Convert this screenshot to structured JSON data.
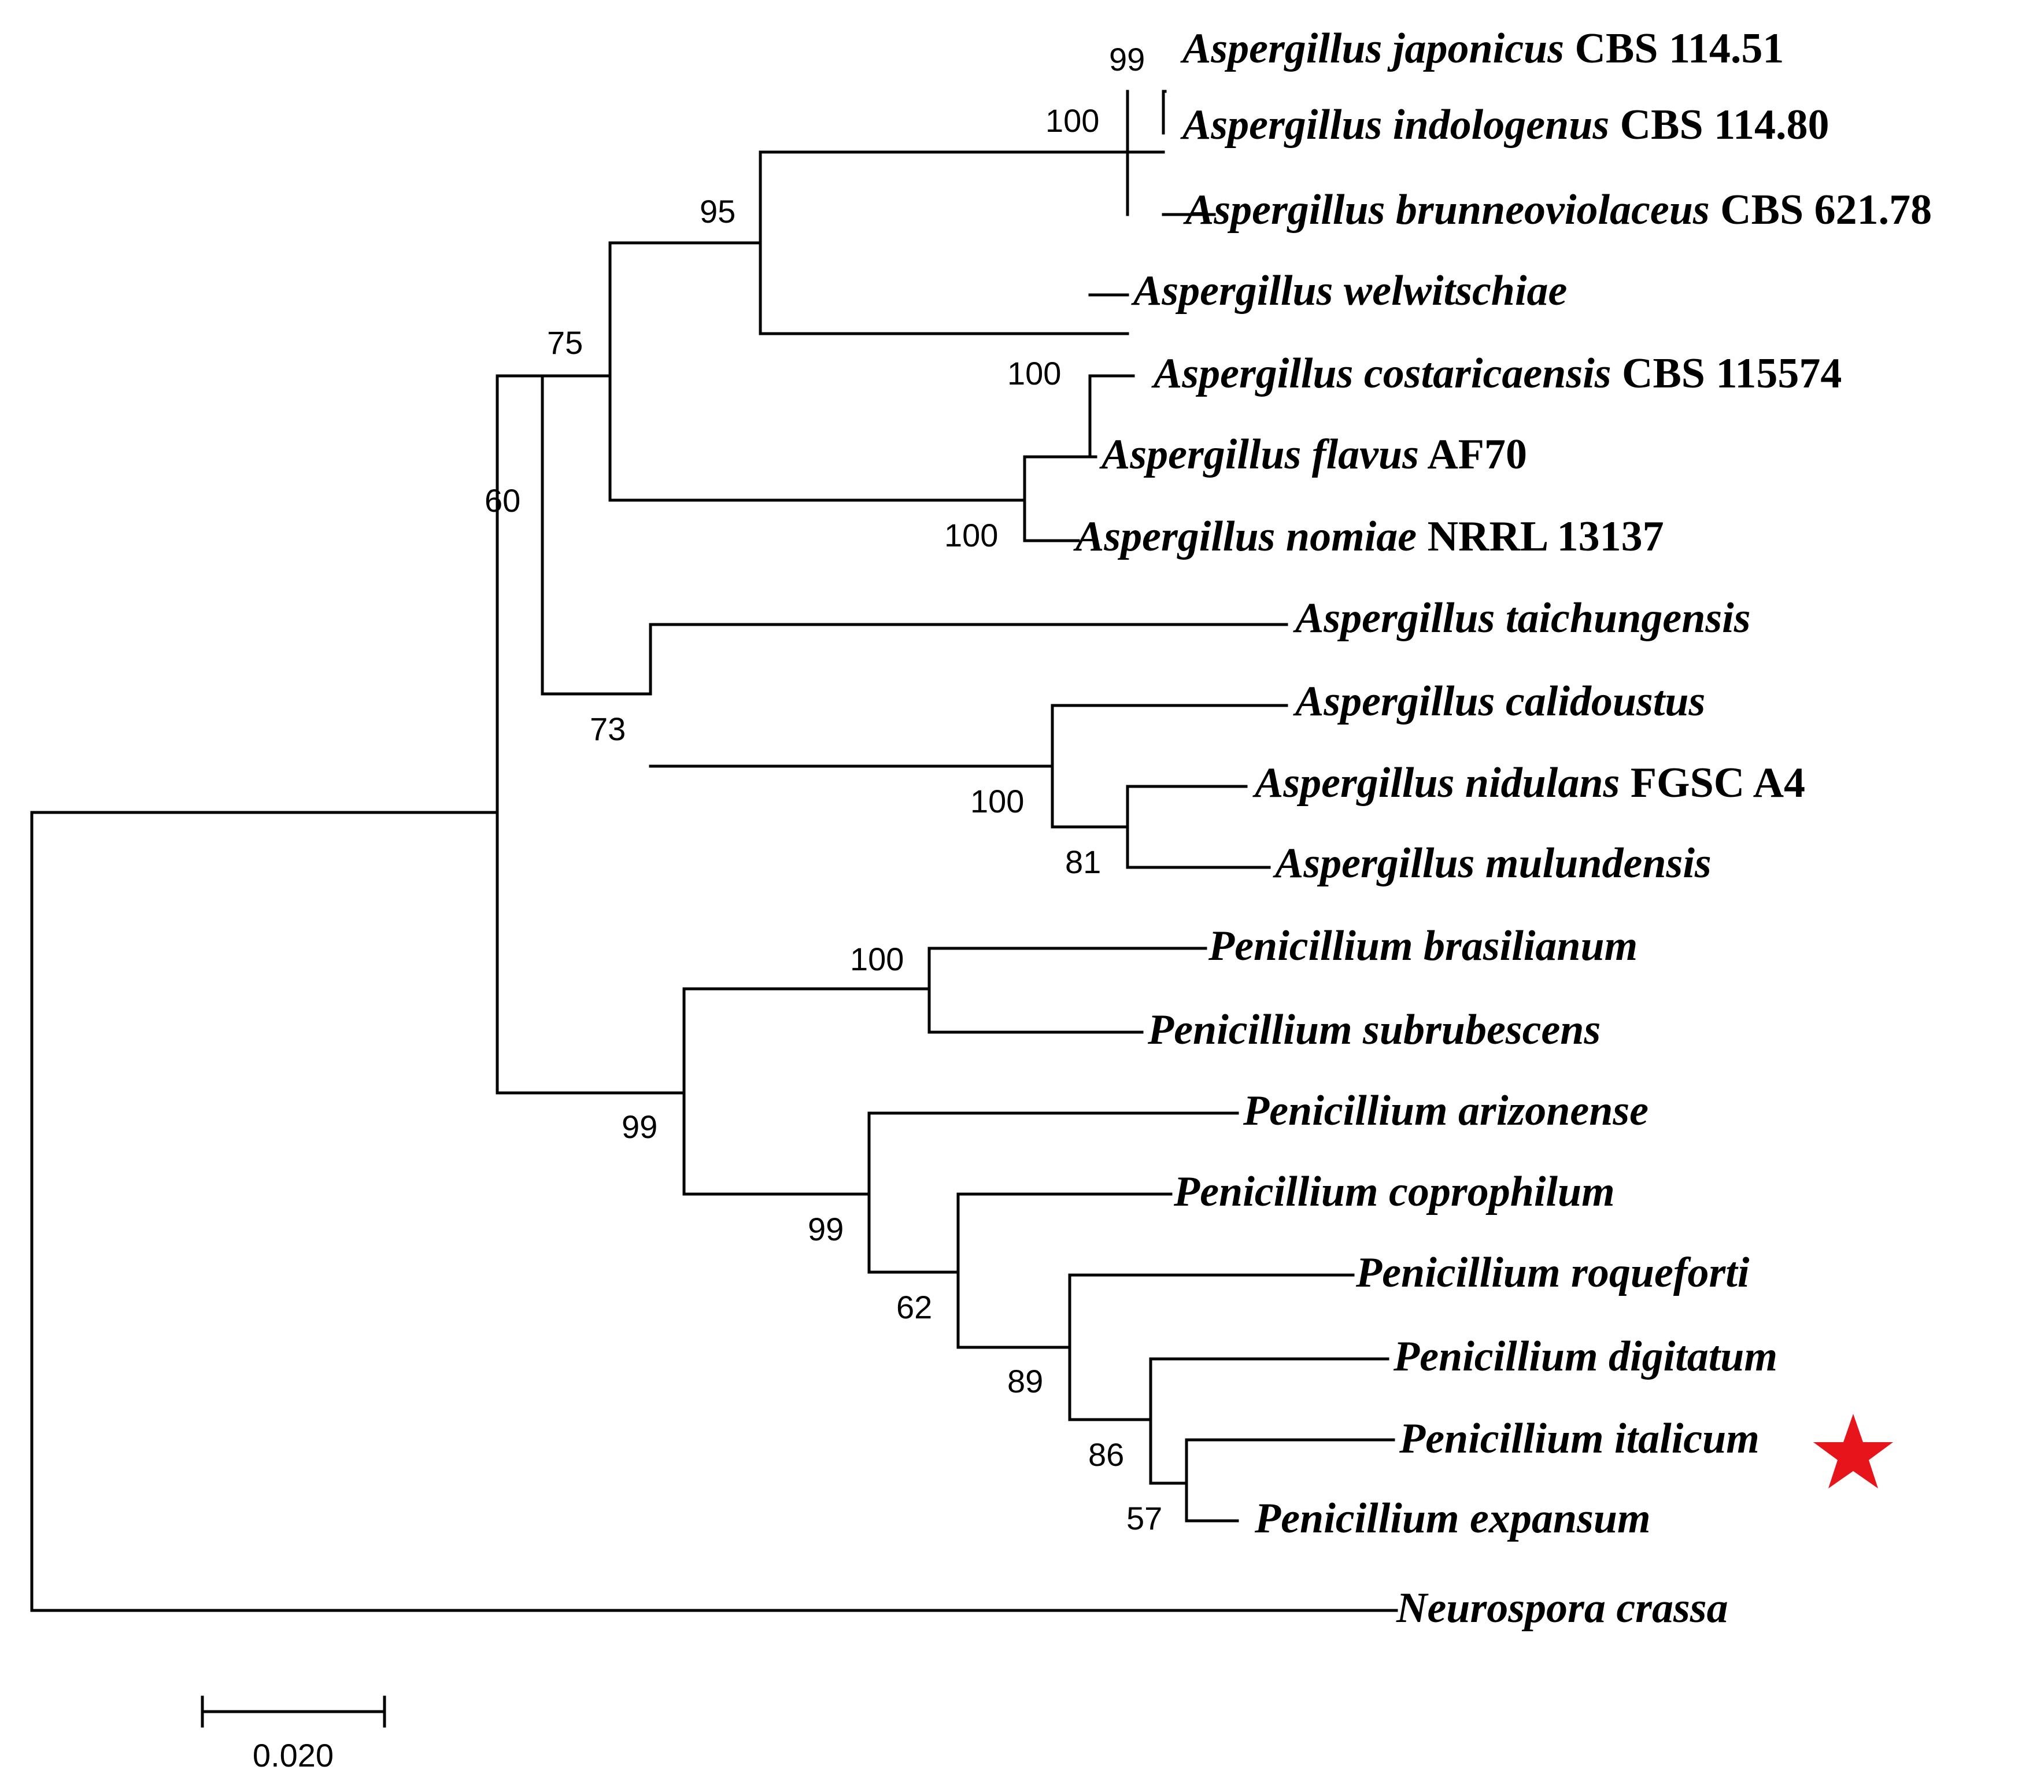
{
  "tree": {
    "taxa": [
      {
        "id": "t1",
        "species": "Aspergillus japonicus",
        "strain": "CBS 114.51"
      },
      {
        "id": "t2",
        "species": "Aspergillus indologenus",
        "strain": "CBS 114.80"
      },
      {
        "id": "t3",
        "species": "Aspergillus brunneoviolaceus",
        "strain": "CBS 621.78"
      },
      {
        "id": "t4",
        "species": "Aspergillus welwitschiae",
        "strain": ""
      },
      {
        "id": "t5",
        "species": "Aspergillus costaricaensis",
        "strain": "CBS 115574"
      },
      {
        "id": "t6",
        "species": "Aspergillus flavus",
        "strain": "AF70"
      },
      {
        "id": "t7",
        "species": "Aspergillus nomiae",
        "strain": "NRRL 13137"
      },
      {
        "id": "t8",
        "species": "Aspergillus taichungensis",
        "strain": ""
      },
      {
        "id": "t9",
        "species": "Aspergillus calidoustus",
        "strain": ""
      },
      {
        "id": "t10",
        "species": "Aspergillus nidulans",
        "strain": "FGSC A4"
      },
      {
        "id": "t11",
        "species": "Aspergillus mulundensis",
        "strain": ""
      },
      {
        "id": "t12",
        "species": "Penicillium brasilianum",
        "strain": ""
      },
      {
        "id": "t13",
        "species": "Penicillium subrubescens",
        "strain": ""
      },
      {
        "id": "t14",
        "species": "Penicillium arizonense",
        "strain": ""
      },
      {
        "id": "t15",
        "species": "Penicillium coprophilum",
        "strain": ""
      },
      {
        "id": "t16",
        "species": "Penicillium roqueforti",
        "strain": ""
      },
      {
        "id": "t17",
        "species": "Penicillium digitatum",
        "strain": ""
      },
      {
        "id": "t18",
        "species": "Penicillium italicum",
        "strain": "",
        "highlight": true
      },
      {
        "id": "t19",
        "species": "Penicillium expansum",
        "strain": ""
      },
      {
        "id": "t20",
        "species": "Neurospora crassa",
        "strain": ""
      }
    ],
    "bootstrap": [
      "99",
      "100",
      "95",
      "100",
      "75",
      "100",
      "60",
      "73",
      "100",
      "81",
      "100",
      "99",
      "99",
      "62",
      "89",
      "86",
      "57"
    ],
    "scale_bar_label": "0.020",
    "highlight_color": "#e8141c",
    "line_color": "#000000"
  }
}
